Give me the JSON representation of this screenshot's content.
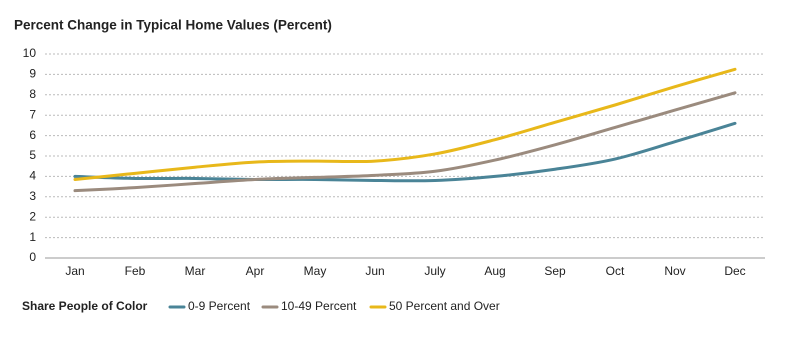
{
  "chart_data": {
    "type": "line",
    "title": "Percent Change in Typical Home Values (Percent)",
    "categories": [
      "Jan",
      "Feb",
      "Mar",
      "Apr",
      "May",
      "Jun",
      "July",
      "Aug",
      "Sep",
      "Oct",
      "Nov",
      "Dec"
    ],
    "series": [
      {
        "name": "0-9 Percent",
        "color": "#4a8497",
        "values": [
          4.0,
          3.9,
          3.9,
          3.85,
          3.85,
          3.8,
          3.8,
          4.0,
          4.35,
          4.85,
          5.7,
          6.6
        ]
      },
      {
        "name": "10-49 Percent",
        "color": "#9b8b7e",
        "values": [
          3.3,
          3.45,
          3.65,
          3.85,
          3.95,
          4.05,
          4.25,
          4.8,
          5.55,
          6.4,
          7.25,
          8.1
        ]
      },
      {
        "name": "50 Percent and Over",
        "color": "#e8b81a",
        "values": [
          3.85,
          4.15,
          4.45,
          4.7,
          4.75,
          4.75,
          5.1,
          5.8,
          6.65,
          7.5,
          8.4,
          9.25
        ]
      }
    ],
    "legend_title": "Share People of Color",
    "ylim": [
      0,
      10
    ],
    "yticks": [
      0,
      1,
      2,
      3,
      4,
      5,
      6,
      7,
      8,
      9,
      10
    ],
    "grid": true,
    "legend": "bottom"
  }
}
